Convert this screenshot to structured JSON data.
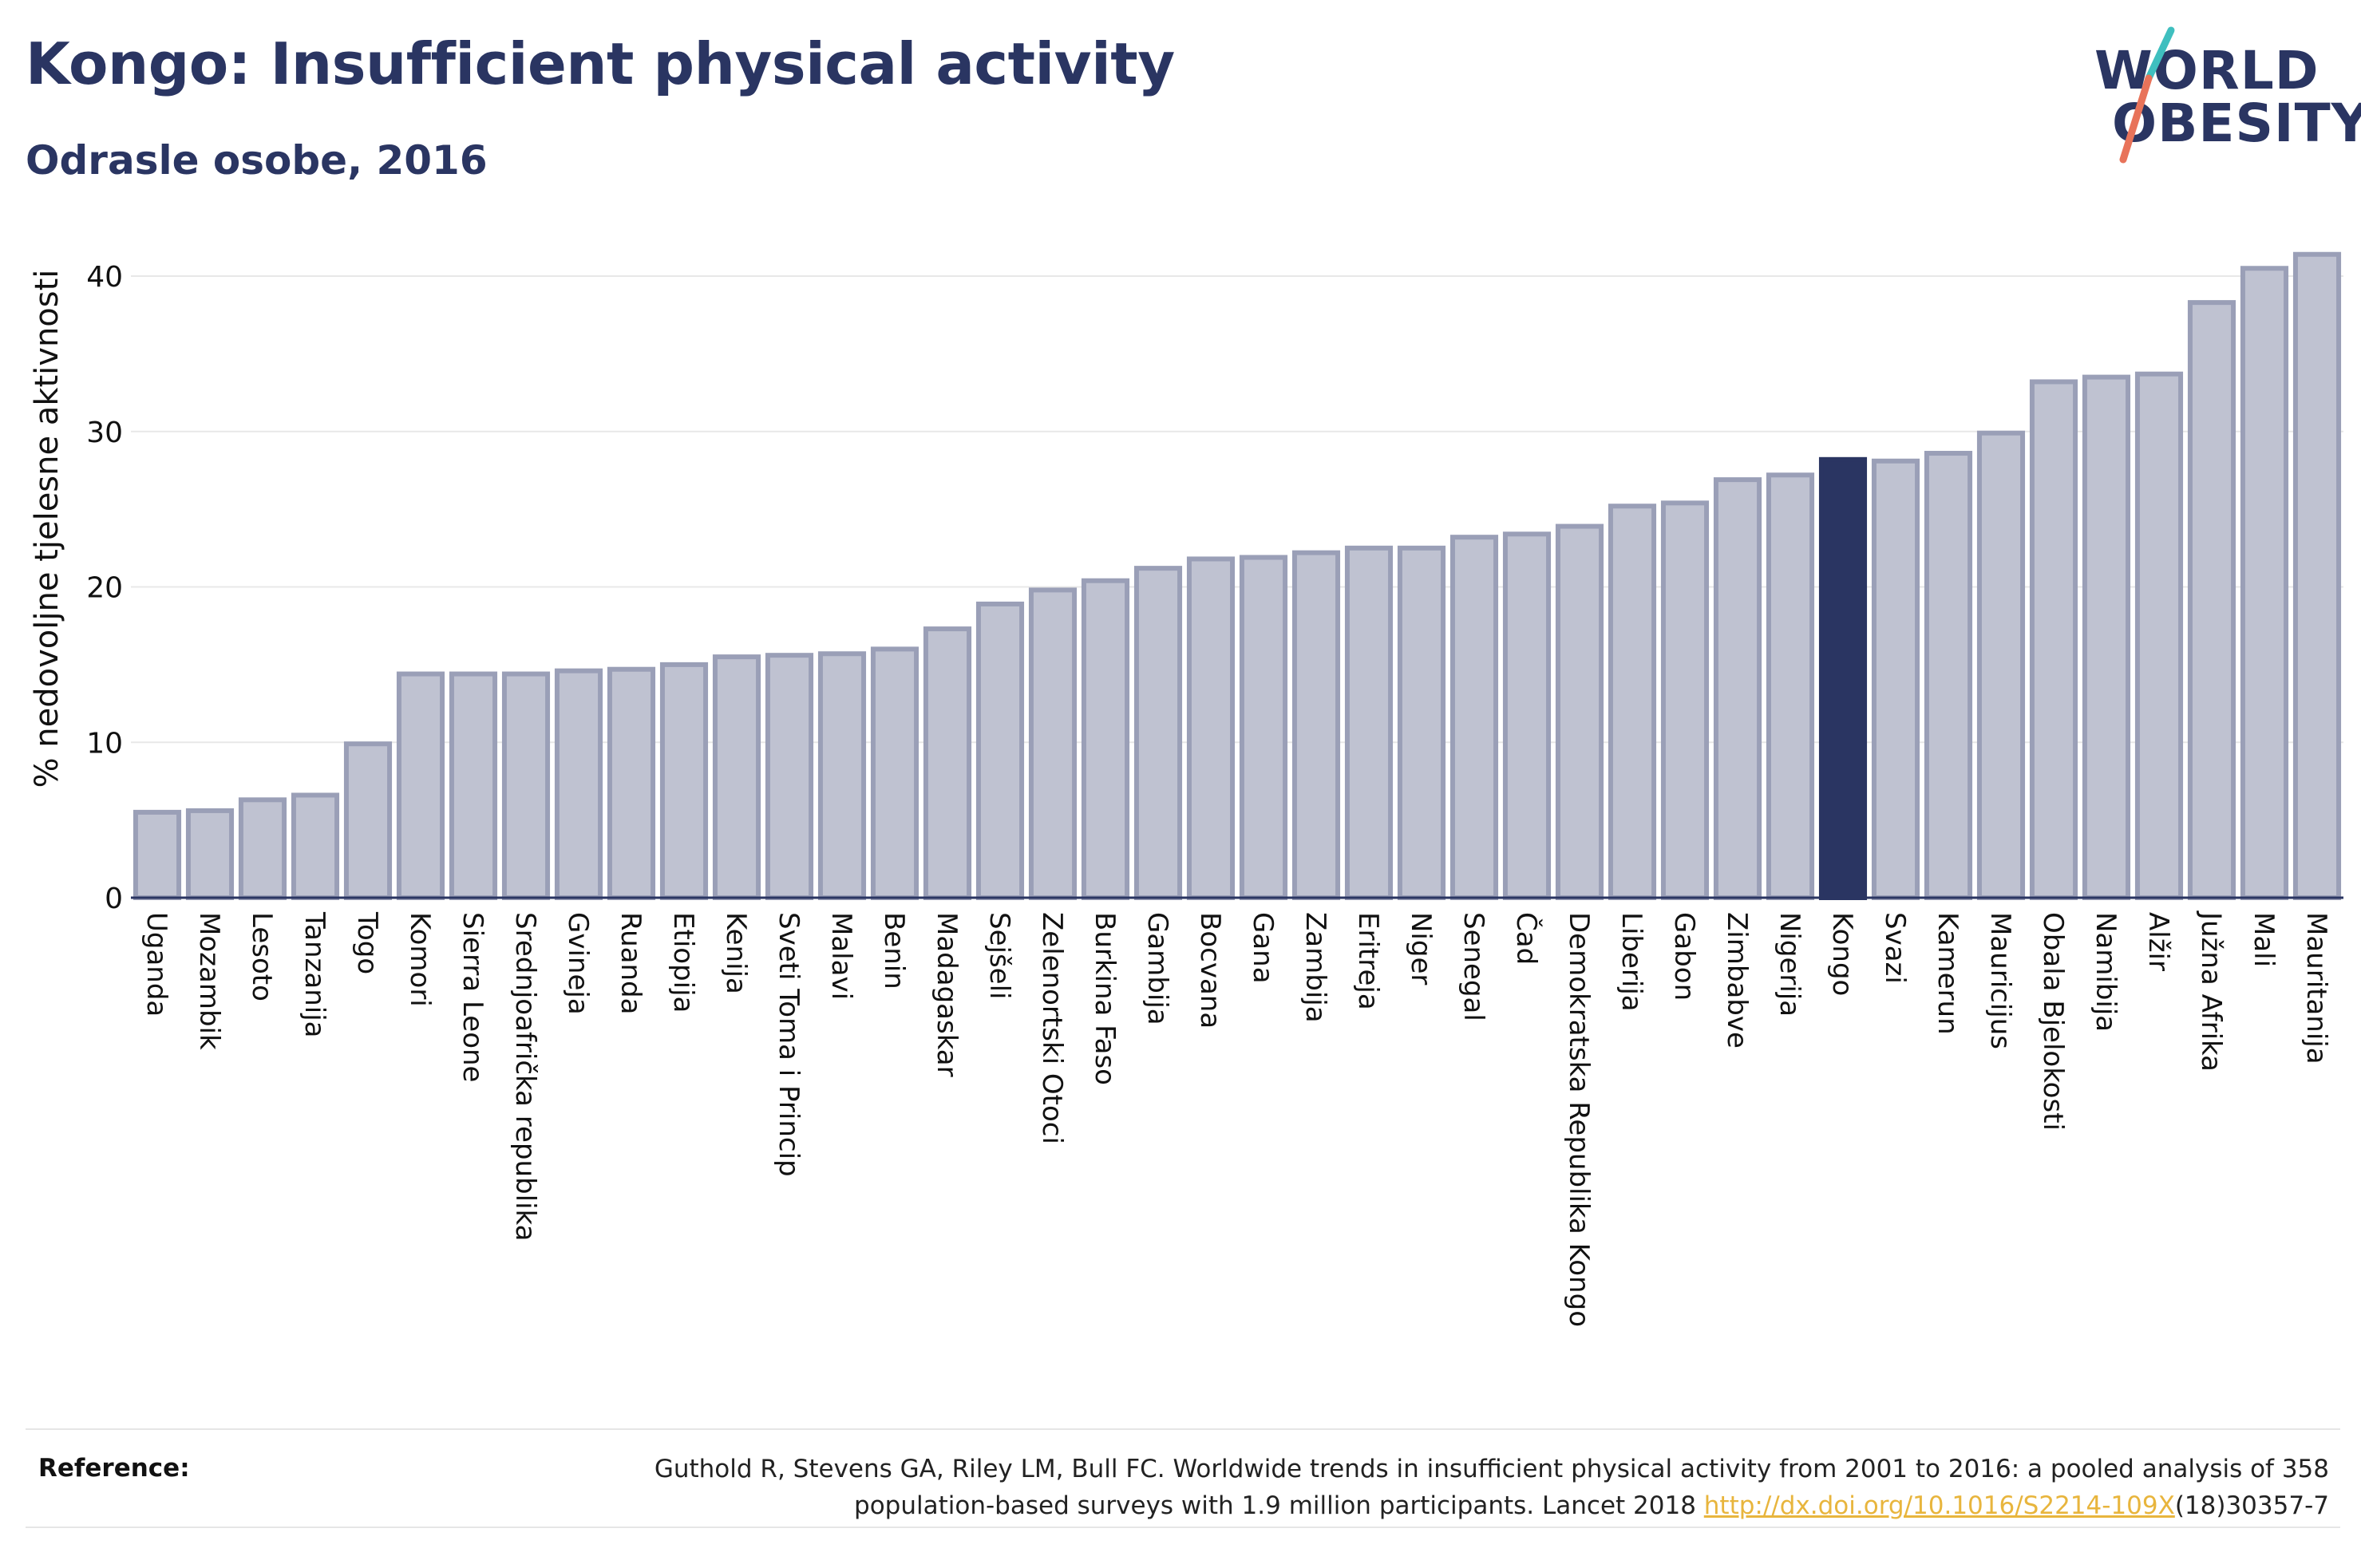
{
  "header": {
    "title": "Kongo: Insufficient physical activity",
    "subtitle": "Odrasle osobe, 2016"
  },
  "logo": {
    "line1": "WORLD",
    "line2": "OBESITY",
    "slash_colors": [
      "#3fbfbf",
      "#e8735a"
    ]
  },
  "colors": {
    "bar_default": "#bfc2d1",
    "bar_outline": "#9a9fb7",
    "bar_highlight": "#2a3562",
    "grid": "#e8e8e8",
    "axis": "#2a3562",
    "link": "#e8b53d"
  },
  "chart_data": {
    "type": "bar",
    "title": "Kongo: Insufficient physical activity",
    "subtitle": "Odrasle osobe, 2016",
    "xlabel": "",
    "ylabel": "% nedovoljne tjelesne aktivnosti",
    "ylim": [
      0,
      42
    ],
    "yticks": [
      0,
      10,
      20,
      30,
      40
    ],
    "grid": true,
    "highlight": "Kongo",
    "categories": [
      "Uganda",
      "Mozambik",
      "Lesoto",
      "Tanzanija",
      "Togo",
      "Komori",
      "Sierra Leone",
      "Srednjoafrička republika",
      "Gvineja",
      "Ruanda",
      "Etiopija",
      "Kenija",
      "Sveti Toma i Princip",
      "Malavi",
      "Benin",
      "Madagaskar",
      "Sejšeli",
      "Zelenortski Otoci",
      "Burkina Faso",
      "Gambija",
      "Bocvana",
      "Gana",
      "Zambija",
      "Eritreja",
      "Niger",
      "Senegal",
      "Čad",
      "Demokratska Republika Kongo",
      "Liberija",
      "Gabon",
      "Zimbabve",
      "Nigerija",
      "Kongo",
      "Svazi",
      "Kamerun",
      "Mauricijus",
      "Obala Bjelokosti",
      "Namibija",
      "Alžir",
      "Južna Afrika",
      "Mali",
      "Mauritanija"
    ],
    "values": [
      5.5,
      5.6,
      6.3,
      6.6,
      9.9,
      14.4,
      14.4,
      14.4,
      14.6,
      14.7,
      15.0,
      15.5,
      15.6,
      15.7,
      16.0,
      17.3,
      18.9,
      19.8,
      20.4,
      21.2,
      21.8,
      21.9,
      22.2,
      22.5,
      22.5,
      23.2,
      23.4,
      23.9,
      25.2,
      25.4,
      26.9,
      27.2,
      28.2,
      28.1,
      28.6,
      29.9,
      33.2,
      33.5,
      33.7,
      38.3,
      40.5,
      41.4
    ]
  },
  "reference": {
    "label": "Reference:",
    "text_line1": "Guthold R, Stevens GA, Riley LM, Bull FC. Worldwide trends in insufficient physical activity from 2001 to 2016: a pooled analysis of 358",
    "text_line2_prefix": "population-based surveys with 1.9 million participants. Lancet 2018 ",
    "link_text": "http://dx.doi.org/10.1016/S2214-109X",
    "text_line2_suffix": "(18)30357-7"
  }
}
